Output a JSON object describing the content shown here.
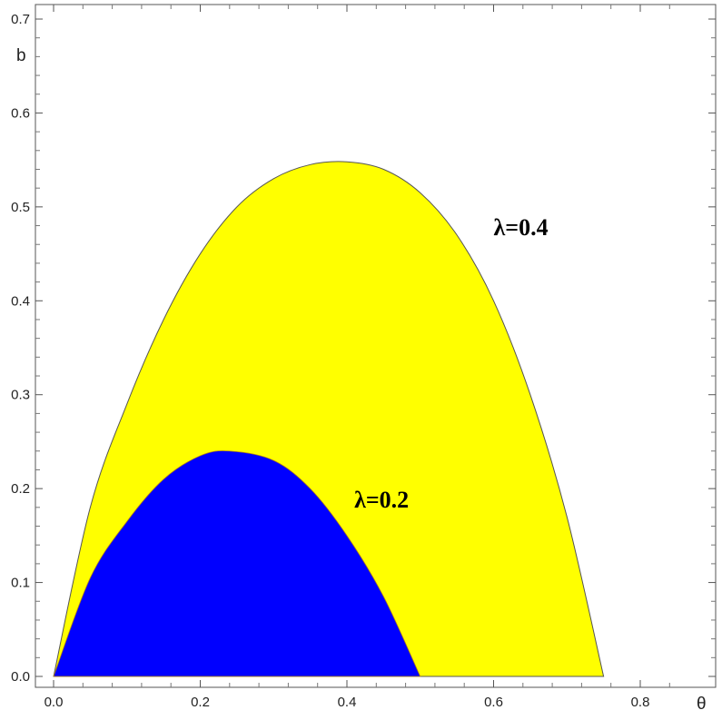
{
  "chart_data": {
    "type": "area",
    "xlabel": "θ",
    "ylabel": "b",
    "xlim": [
      0,
      0.85
    ],
    "ylim": [
      0,
      0.7
    ],
    "x_ticks": [
      "0.0",
      "0.2",
      "0.4",
      "0.6",
      "0.8"
    ],
    "y_ticks": [
      "0.0",
      "0.1",
      "0.2",
      "0.3",
      "0.4",
      "0.5",
      "0.6",
      "0.7"
    ],
    "x_tick_values": [
      0,
      0.2,
      0.4,
      0.6,
      0.8
    ],
    "y_tick_values": [
      0,
      0.1,
      0.2,
      0.3,
      0.4,
      0.5,
      0.6,
      0.7
    ],
    "series": [
      {
        "name": "λ=0.4",
        "color": "#ffff00",
        "x": [
          0,
          0.05,
          0.1,
          0.15,
          0.2,
          0.25,
          0.3,
          0.35,
          0.4,
          0.45,
          0.5,
          0.55,
          0.6,
          0.65,
          0.7,
          0.75
        ],
        "y": [
          0,
          0.18,
          0.29,
          0.38,
          0.45,
          0.5,
          0.53,
          0.545,
          0.548,
          0.54,
          0.515,
          0.47,
          0.4,
          0.3,
          0.17,
          0
        ]
      },
      {
        "name": "λ=0.2",
        "color": "#0000ff",
        "x": [
          0,
          0.05,
          0.1,
          0.15,
          0.2,
          0.24,
          0.3,
          0.35,
          0.4,
          0.45,
          0.5
        ],
        "y": [
          0,
          0.105,
          0.165,
          0.21,
          0.235,
          0.24,
          0.23,
          0.2,
          0.15,
          0.085,
          0
        ]
      }
    ],
    "annotations": [
      {
        "text": "λ=0.4",
        "x": 0.6,
        "y": 0.47
      },
      {
        "text": "λ=0.2",
        "x": 0.41,
        "y": 0.18
      }
    ],
    "grid": false
  }
}
